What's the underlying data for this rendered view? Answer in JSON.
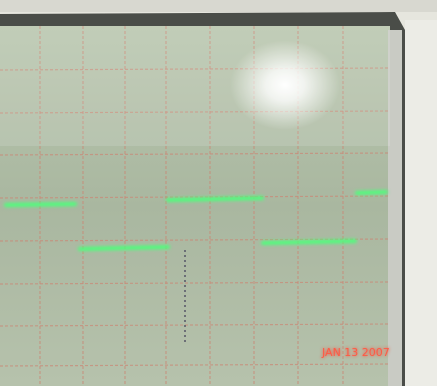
{
  "timestamp": "JAN 13 2007"
}
